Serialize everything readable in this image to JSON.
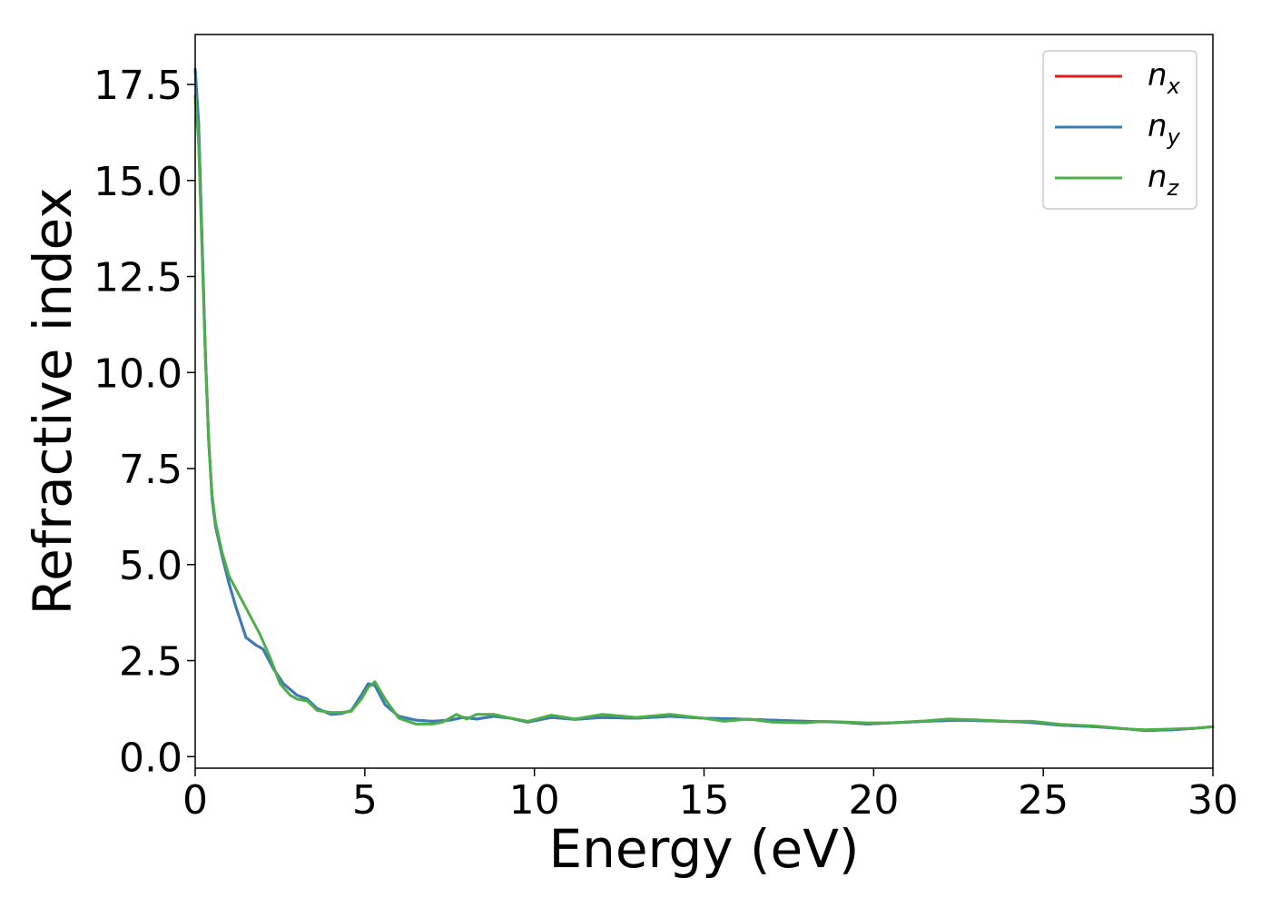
{
  "chart_data": {
    "type": "line",
    "xlabel": "Energy (eV)",
    "ylabel": "Refractive index",
    "xlim": [
      0,
      30
    ],
    "ylim": [
      -0.3,
      18.8
    ],
    "xticks": [
      0,
      5,
      10,
      15,
      20,
      25,
      30
    ],
    "xtick_labels": [
      "0",
      "5",
      "10",
      "15",
      "20",
      "25",
      "30"
    ],
    "yticks": [
      0.0,
      2.5,
      5.0,
      7.5,
      10.0,
      12.5,
      15.0,
      17.5
    ],
    "ytick_labels": [
      "0.0",
      "2.5",
      "5.0",
      "7.5",
      "10.0",
      "12.5",
      "15.0",
      "17.5"
    ],
    "grid": false,
    "legend_position": "top-right",
    "series": [
      {
        "name": "n_x",
        "label_main": "n",
        "label_sub": "x",
        "color": "#e41a1c",
        "x": [
          0,
          0.1,
          0.2,
          0.3,
          0.4,
          0.5,
          0.6,
          0.7,
          0.8,
          1.0,
          1.2,
          1.5,
          1.8,
          2.0,
          2.3,
          2.6,
          3.0,
          3.3,
          3.6,
          4.0,
          4.3,
          4.6,
          4.9,
          5.1,
          5.3,
          5.6,
          6.0,
          6.5,
          7.0,
          7.5,
          7.9,
          8.3,
          8.8,
          9.3,
          9.8,
          10.5,
          11.2,
          12.0,
          13.0,
          14.0,
          15.0,
          16.0,
          17.0,
          18.0,
          19.0,
          19.8,
          20.5,
          21.5,
          22.5,
          23.5,
          24.5,
          25.5,
          26.5,
          27.5,
          28.0,
          28.8,
          29.5,
          30.0
        ],
        "y": [
          17.9,
          16.5,
          13.5,
          10.5,
          8.2,
          6.7,
          6.0,
          5.6,
          5.2,
          4.5,
          3.9,
          3.1,
          2.9,
          2.8,
          2.3,
          1.9,
          1.6,
          1.5,
          1.25,
          1.1,
          1.12,
          1.2,
          1.6,
          1.9,
          1.85,
          1.35,
          1.05,
          0.95,
          0.92,
          0.95,
          1.02,
          0.98,
          1.05,
          1.0,
          0.9,
          1.02,
          0.97,
          1.02,
          1.0,
          1.05,
          1.0,
          0.98,
          0.95,
          0.92,
          0.9,
          0.85,
          0.88,
          0.92,
          0.95,
          0.93,
          0.9,
          0.82,
          0.78,
          0.72,
          0.68,
          0.7,
          0.74,
          0.78
        ]
      },
      {
        "name": "n_y",
        "label_main": "n",
        "label_sub": "y",
        "color": "#377eb8",
        "x": [
          0,
          0.1,
          0.2,
          0.3,
          0.4,
          0.5,
          0.6,
          0.7,
          0.8,
          1.0,
          1.2,
          1.5,
          1.8,
          2.0,
          2.3,
          2.6,
          3.0,
          3.3,
          3.6,
          4.0,
          4.3,
          4.6,
          4.9,
          5.1,
          5.3,
          5.6,
          6.0,
          6.5,
          7.0,
          7.5,
          7.9,
          8.3,
          8.8,
          9.3,
          9.8,
          10.5,
          11.2,
          12.0,
          13.0,
          14.0,
          15.0,
          16.0,
          17.0,
          18.0,
          19.0,
          19.8,
          20.5,
          21.5,
          22.5,
          23.5,
          24.5,
          25.5,
          26.5,
          27.5,
          28.0,
          28.8,
          29.5,
          30.0
        ],
        "y": [
          17.9,
          16.5,
          13.5,
          10.5,
          8.2,
          6.7,
          6.0,
          5.6,
          5.2,
          4.5,
          3.9,
          3.1,
          2.9,
          2.8,
          2.3,
          1.9,
          1.6,
          1.5,
          1.25,
          1.1,
          1.12,
          1.2,
          1.6,
          1.9,
          1.85,
          1.35,
          1.05,
          0.95,
          0.92,
          0.95,
          1.02,
          0.98,
          1.05,
          1.0,
          0.9,
          1.02,
          0.97,
          1.02,
          1.0,
          1.05,
          1.0,
          0.98,
          0.95,
          0.92,
          0.9,
          0.85,
          0.88,
          0.92,
          0.95,
          0.93,
          0.9,
          0.82,
          0.78,
          0.72,
          0.68,
          0.7,
          0.74,
          0.78
        ]
      },
      {
        "name": "n_z",
        "label_main": "n",
        "label_sub": "z",
        "color": "#4daf4a",
        "x": [
          0,
          0.1,
          0.2,
          0.3,
          0.4,
          0.5,
          0.6,
          0.7,
          0.8,
          1.0,
          1.3,
          1.6,
          1.9,
          2.2,
          2.5,
          2.8,
          3.0,
          3.3,
          3.6,
          4.0,
          4.3,
          4.6,
          4.9,
          5.1,
          5.3,
          5.6,
          6.0,
          6.5,
          7.0,
          7.3,
          7.7,
          8.0,
          8.3,
          8.8,
          9.3,
          9.8,
          10.5,
          11.2,
          12.0,
          13.0,
          14.0,
          15.0,
          15.6,
          16.3,
          17.0,
          18.0,
          18.5,
          19.2,
          19.8,
          20.5,
          21.5,
          22.2,
          23.0,
          24.0,
          24.7,
          25.5,
          26.5,
          27.5,
          28.0,
          28.8,
          29.5,
          30.0
        ],
        "y": [
          17.2,
          16.0,
          13.2,
          10.4,
          8.2,
          6.8,
          6.1,
          5.7,
          5.3,
          4.7,
          4.2,
          3.7,
          3.2,
          2.6,
          1.9,
          1.6,
          1.5,
          1.45,
          1.2,
          1.15,
          1.15,
          1.18,
          1.5,
          1.8,
          1.95,
          1.5,
          1.0,
          0.85,
          0.85,
          0.9,
          1.1,
          0.98,
          1.1,
          1.1,
          1.0,
          0.92,
          1.08,
          0.98,
          1.1,
          1.02,
          1.1,
          1.0,
          0.92,
          0.98,
          0.9,
          0.88,
          0.92,
          0.9,
          0.88,
          0.88,
          0.93,
          0.98,
          0.96,
          0.92,
          0.92,
          0.84,
          0.8,
          0.72,
          0.7,
          0.72,
          0.74,
          0.78
        ]
      }
    ]
  }
}
